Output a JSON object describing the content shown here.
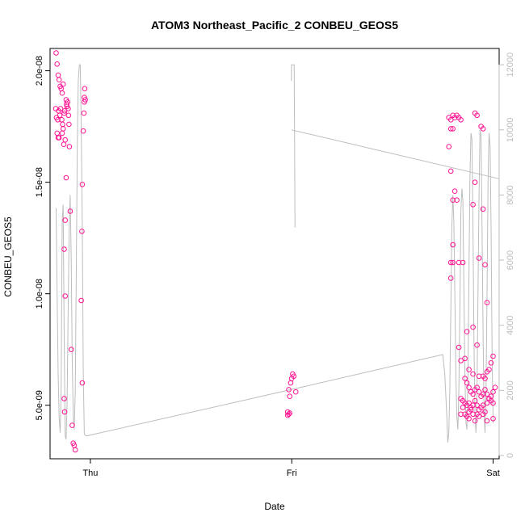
{
  "chart_data": {
    "type": "scatter",
    "title": "ATOM3 Northeast_Pacific_2 CONBEU_GEOS5",
    "xlabel": "Date",
    "ylabel": "CONBEU_GEOS5",
    "x_ticks": [
      "Thu",
      "Fri",
      "Sat"
    ],
    "y_ticks": [
      "5.0e-09",
      "1.0e-08",
      "1.5e-08",
      "2.0e-08"
    ],
    "y_tick_values": [
      5e-09,
      1e-08,
      1.5e-08,
      2e-08
    ],
    "y_range": [
      2.6e-09,
      2.1e-08
    ],
    "right_axis_ticks": [
      "0",
      "2000",
      "4000",
      "6000",
      "8000",
      "10000",
      "12000"
    ],
    "right_axis_tick_values": [
      0,
      2000,
      4000,
      6000,
      8000,
      10000,
      12000
    ],
    "right_axis_range": [
      -100,
      12500
    ],
    "x_range_days": [
      -0.2,
      2.03
    ],
    "point_color": "#ff1493",
    "line_color": "#bdbdbd",
    "grid": false,
    "series": [
      {
        "kind": "points",
        "points": [
          [
            -0.17,
            2.08e-08
          ],
          [
            -0.165,
            2.03e-08
          ],
          [
            -0.16,
            1.98e-08
          ],
          [
            -0.155,
            1.96e-08
          ],
          [
            -0.15,
            1.93e-08
          ],
          [
            -0.145,
            1.92e-08
          ],
          [
            -0.14,
            1.9e-08
          ],
          [
            -0.135,
            1.94e-08
          ],
          [
            -0.172,
            1.83e-08
          ],
          [
            -0.168,
            1.79e-08
          ],
          [
            -0.162,
            1.78e-08
          ],
          [
            -0.158,
            1.82e-08
          ],
          [
            -0.152,
            1.8e-08
          ],
          [
            -0.148,
            1.83e-08
          ],
          [
            -0.142,
            1.78e-08
          ],
          [
            -0.138,
            1.76e-08
          ],
          [
            -0.165,
            1.72e-08
          ],
          [
            -0.16,
            1.7e-08
          ],
          [
            -0.155,
            1.7e-08
          ],
          [
            -0.14,
            1.72e-08
          ],
          [
            -0.135,
            1.74e-08
          ],
          [
            -0.132,
            1.67e-08
          ],
          [
            -0.13,
            1.81e-08
          ],
          [
            -0.128,
            1.82e-08
          ],
          [
            -0.125,
            1.69e-08
          ],
          [
            -0.12,
            1.87e-08
          ],
          [
            -0.118,
            1.85e-08
          ],
          [
            -0.116,
            1.84e-08
          ],
          [
            -0.113,
            1.86e-08
          ],
          [
            -0.11,
            1.83e-08
          ],
          [
            -0.108,
            1.8e-08
          ],
          [
            -0.106,
            1.76e-08
          ],
          [
            -0.104,
            1.66e-08
          ],
          [
            -0.1,
            1.37e-08
          ],
          [
            -0.12,
            1.52e-08
          ],
          [
            -0.125,
            1.33e-08
          ],
          [
            -0.13,
            1.2e-08
          ],
          [
            -0.125,
            9.9e-09
          ],
          [
            -0.13,
            5.3e-09
          ],
          [
            -0.128,
            4.7e-09
          ],
          [
            -0.095,
            7.5e-09
          ],
          [
            -0.09,
            4.1e-09
          ],
          [
            -0.085,
            3.3e-09
          ],
          [
            -0.08,
            3.2e-09
          ],
          [
            -0.075,
            3e-09
          ],
          [
            -0.03,
            1.88e-08
          ],
          [
            -0.028,
            1.92e-08
          ],
          [
            -0.03,
            1.86e-08
          ],
          [
            -0.032,
            1.81e-08
          ],
          [
            -0.035,
            1.73e-08
          ],
          [
            -0.04,
            1.49e-08
          ],
          [
            -0.042,
            1.28e-08
          ],
          [
            -0.045,
            9.7e-09
          ],
          [
            -0.04,
            6e-09
          ],
          [
            -0.025,
            1.87e-08
          ],
          [
            1.005,
            6.4e-09
          ],
          [
            1.01,
            6.3e-09
          ],
          [
            1.0,
            6.2e-09
          ],
          [
            0.995,
            6e-09
          ],
          [
            0.985,
            5.7e-09
          ],
          [
            1.02,
            5.6e-09
          ],
          [
            0.99,
            5.4e-09
          ],
          [
            0.98,
            4.7e-09
          ],
          [
            0.985,
            4.6e-09
          ],
          [
            0.99,
            4.65e-09
          ],
          [
            0.98,
            4.55e-09
          ],
          [
            1.78,
            1.79e-08
          ],
          [
            1.79,
            1.78e-08
          ],
          [
            1.8,
            1.8e-08
          ],
          [
            1.81,
            1.79e-08
          ],
          [
            1.82,
            1.8e-08
          ],
          [
            1.83,
            1.79e-08
          ],
          [
            1.84,
            1.78e-08
          ],
          [
            1.79,
            1.74e-08
          ],
          [
            1.8,
            1.74e-08
          ],
          [
            1.78,
            1.66e-08
          ],
          [
            1.79,
            1.55e-08
          ],
          [
            1.8,
            1.42e-08
          ],
          [
            1.82,
            1.42e-08
          ],
          [
            1.81,
            1.46e-08
          ],
          [
            1.8,
            1.22e-08
          ],
          [
            1.79,
            1.14e-08
          ],
          [
            1.8,
            1.14e-08
          ],
          [
            1.79,
            1.07e-08
          ],
          [
            1.83,
            1.14e-08
          ],
          [
            1.85,
            1.14e-08
          ],
          [
            1.91,
            1.81e-08
          ],
          [
            1.92,
            1.8e-08
          ],
          [
            1.94,
            1.75e-08
          ],
          [
            1.95,
            1.74e-08
          ],
          [
            1.91,
            1.5e-08
          ],
          [
            1.9,
            1.4e-08
          ],
          [
            1.95,
            1.38e-08
          ],
          [
            1.93,
            1.16e-08
          ],
          [
            1.96,
            1.13e-08
          ],
          [
            1.97,
            9.6e-09
          ],
          [
            1.9,
            8.5e-09
          ],
          [
            1.87,
            8.3e-09
          ],
          [
            1.92,
            7.7e-09
          ],
          [
            1.83,
            7.6e-09
          ],
          [
            1.86,
            7.1e-09
          ],
          [
            1.84,
            7e-09
          ],
          [
            1.88,
            6.6e-09
          ],
          [
            1.9,
            6.4e-09
          ],
          [
            1.93,
            6.3e-09
          ],
          [
            1.95,
            6.3e-09
          ],
          [
            1.96,
            6.2e-09
          ],
          [
            2.0,
            7.2e-09
          ],
          [
            1.99,
            6.9e-09
          ],
          [
            1.98,
            6.6e-09
          ],
          [
            1.97,
            6.5e-09
          ],
          [
            1.86,
            6.2e-09
          ],
          [
            1.87,
            6e-09
          ],
          [
            1.88,
            5.8e-09
          ],
          [
            1.89,
            5.6e-09
          ],
          [
            1.9,
            5.5e-09
          ],
          [
            1.91,
            5.7e-09
          ],
          [
            1.92,
            5.8e-09
          ],
          [
            1.93,
            5.6e-09
          ],
          [
            1.94,
            5.4e-09
          ],
          [
            1.95,
            5.5e-09
          ],
          [
            1.96,
            5.7e-09
          ],
          [
            1.97,
            5.5e-09
          ],
          [
            1.98,
            5.3e-09
          ],
          [
            1.99,
            5.4e-09
          ],
          [
            2.0,
            5.6e-09
          ],
          [
            2.01,
            5.8e-09
          ],
          [
            1.84,
            5.3e-09
          ],
          [
            1.85,
            5.2e-09
          ],
          [
            1.86,
            5.1e-09
          ],
          [
            1.87,
            5e-09
          ],
          [
            1.88,
            5.1e-09
          ],
          [
            1.89,
            4.9e-09
          ],
          [
            1.9,
            5e-09
          ],
          [
            1.91,
            5.2e-09
          ],
          [
            1.92,
            5e-09
          ],
          [
            1.93,
            4.8e-09
          ],
          [
            1.94,
            4.9e-09
          ],
          [
            1.95,
            5e-09
          ],
          [
            1.96,
            4.7e-09
          ],
          [
            1.97,
            5.1e-09
          ],
          [
            1.98,
            5.3e-09
          ],
          [
            1.99,
            5.2e-09
          ],
          [
            2.0,
            5.1e-09
          ],
          [
            1.85,
            4.9e-09
          ],
          [
            1.86,
            4.6e-09
          ],
          [
            1.87,
            4.5e-09
          ],
          [
            1.88,
            4.7e-09
          ],
          [
            1.89,
            4.8e-09
          ],
          [
            1.9,
            4.6e-09
          ],
          [
            1.91,
            4.3e-09
          ],
          [
            1.93,
            4.5e-09
          ],
          [
            1.95,
            4.6e-09
          ],
          [
            1.97,
            4.3e-09
          ],
          [
            2.0,
            4.4e-09
          ],
          [
            1.84,
            4.6e-09
          ],
          [
            1.88,
            4.4e-09
          ],
          [
            1.92,
            4.6e-09
          ]
        ]
      },
      {
        "kind": "line",
        "points": [
          [
            -0.17,
            7600
          ],
          [
            -0.165,
            5000
          ],
          [
            -0.16,
            2500
          ],
          [
            -0.155,
            1200
          ],
          [
            -0.15,
            700
          ],
          [
            -0.145,
            2000
          ],
          [
            -0.14,
            7200
          ],
          [
            -0.135,
            7700
          ],
          [
            -0.13,
            3500
          ],
          [
            -0.125,
            600
          ],
          [
            -0.12,
            500
          ],
          [
            -0.115,
            1800
          ],
          [
            -0.11,
            4500
          ],
          [
            -0.105,
            7000
          ],
          [
            -0.1,
            8000
          ],
          [
            -0.095,
            6000
          ],
          [
            -0.09,
            3000
          ],
          [
            -0.085,
            1200
          ],
          [
            -0.08,
            800
          ],
          [
            -0.075,
            2000
          ],
          [
            -0.07,
            5500
          ],
          [
            -0.065,
            9500
          ],
          [
            -0.06,
            11500
          ],
          [
            -0.055,
            12000
          ],
          [
            -0.05,
            12000
          ],
          [
            -0.045,
            10000
          ],
          [
            -0.04,
            7000
          ],
          [
            -0.035,
            2500
          ],
          [
            -0.03,
            650
          ],
          [
            -0.02,
            600
          ],
          [
            0.98,
            2000
          ],
          [
            1.75,
            3100
          ],
          [
            1.76,
            2500
          ],
          [
            1.77,
            1200
          ],
          [
            1.775,
            400
          ],
          [
            1.78,
            700
          ],
          [
            1.785,
            2000
          ],
          [
            1.79,
            4500
          ],
          [
            1.795,
            7000
          ],
          [
            1.8,
            8000
          ],
          [
            1.805,
            7200
          ],
          [
            1.81,
            5000
          ],
          [
            1.815,
            2500
          ],
          [
            1.82,
            1200
          ],
          [
            1.825,
            800
          ],
          [
            1.83,
            2000
          ],
          [
            1.835,
            4500
          ],
          [
            1.84,
            7500
          ],
          [
            1.845,
            8200
          ],
          [
            1.85,
            7800
          ],
          [
            1.855,
            5000
          ],
          [
            1.86,
            2500
          ],
          [
            1.865,
            1000
          ],
          [
            1.87,
            800
          ],
          [
            1.875,
            2500
          ],
          [
            1.88,
            5500
          ],
          [
            1.885,
            8500
          ],
          [
            1.89,
            9900
          ],
          [
            1.895,
            9700
          ],
          [
            1.9,
            7000
          ],
          [
            1.905,
            3500
          ],
          [
            1.91,
            1200
          ],
          [
            1.915,
            700
          ],
          [
            1.92,
            2000
          ],
          [
            1.925,
            5000
          ],
          [
            1.93,
            8000
          ],
          [
            1.935,
            10000
          ],
          [
            1.94,
            9800
          ],
          [
            1.945,
            7000
          ],
          [
            1.95,
            3800
          ],
          [
            1.955,
            1300
          ],
          [
            1.96,
            700
          ],
          [
            1.965,
            2000
          ],
          [
            1.97,
            5000
          ],
          [
            1.975,
            8500
          ],
          [
            1.98,
            9900
          ],
          [
            1.985,
            9500
          ],
          [
            1.99,
            7000
          ],
          [
            1.995,
            3000
          ],
          [
            2.0,
            1000
          ]
        ]
      },
      {
        "kind": "line",
        "points": [
          [
            0.998,
            11500
          ],
          [
            0.999,
            12000
          ],
          [
            1.012,
            12000
          ],
          [
            1.014,
            10000
          ],
          [
            1.016,
            7000
          ]
        ]
      },
      {
        "kind": "line",
        "points": [
          [
            0.999,
            10000
          ],
          [
            2.03,
            8500
          ]
        ]
      }
    ]
  }
}
